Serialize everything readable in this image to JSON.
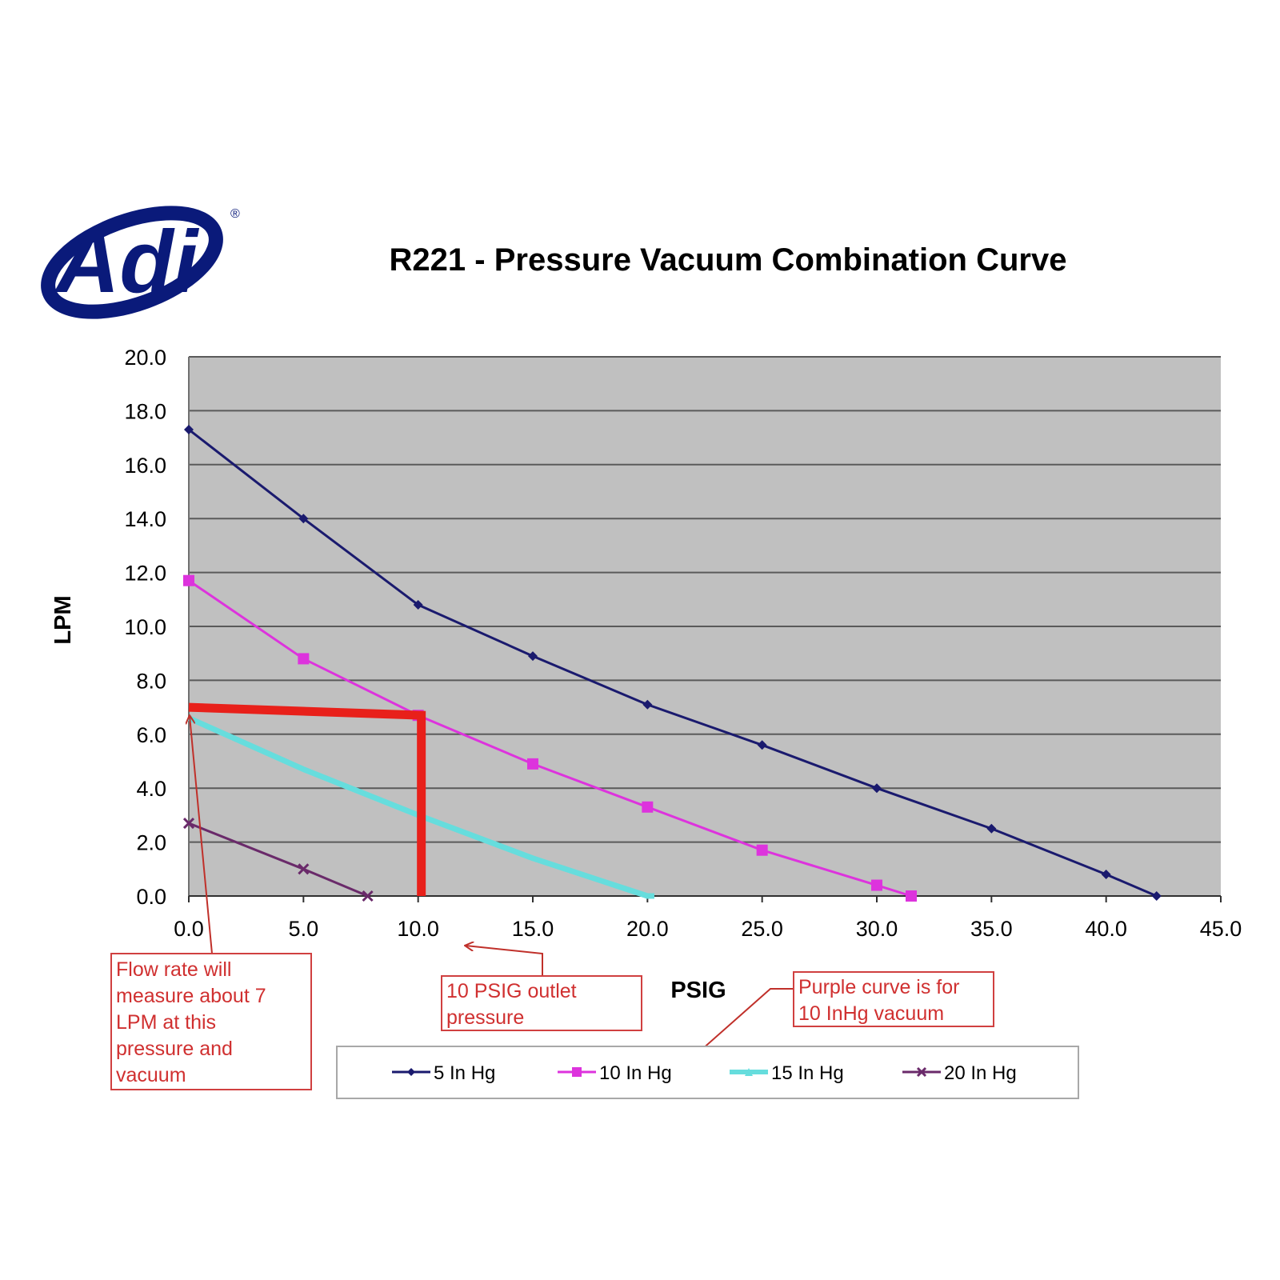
{
  "logo": {
    "text": "Adi",
    "registered": "®",
    "color": "#0a1a7a"
  },
  "chart_data": {
    "type": "line",
    "title": "R221 - Pressure Vacuum Combination Curve",
    "xlabel": "PSIG",
    "ylabel": "LPM",
    "xlim": [
      0,
      45
    ],
    "ylim": [
      0,
      20
    ],
    "xticks": [
      "0.0",
      "5.0",
      "10.0",
      "15.0",
      "20.0",
      "25.0",
      "30.0",
      "35.0",
      "40.0",
      "45.0"
    ],
    "yticks": [
      "0.0",
      "2.0",
      "4.0",
      "6.0",
      "8.0",
      "10.0",
      "12.0",
      "14.0",
      "16.0",
      "18.0",
      "20.0"
    ],
    "grid": true,
    "plot_background": "#c0c0c0",
    "legend_position": "bottom",
    "series": [
      {
        "name": "5 In Hg",
        "color": "#1a1a6e",
        "marker": "diamond",
        "points": [
          [
            0,
            17.3
          ],
          [
            5,
            14.0
          ],
          [
            10,
            10.8
          ],
          [
            15,
            8.9
          ],
          [
            20,
            7.1
          ],
          [
            25,
            5.6
          ],
          [
            30,
            4.0
          ],
          [
            35,
            2.5
          ],
          [
            40,
            0.8
          ],
          [
            42.2,
            0
          ]
        ]
      },
      {
        "name": "10 In Hg",
        "color": "#dd33dd",
        "marker": "square",
        "points": [
          [
            0,
            11.7
          ],
          [
            5,
            8.8
          ],
          [
            10,
            6.7
          ],
          [
            15,
            4.9
          ],
          [
            20,
            3.3
          ],
          [
            25,
            1.7
          ],
          [
            30,
            0.4
          ],
          [
            31.5,
            0
          ]
        ]
      },
      {
        "name": "15 In Hg",
        "color": "#66dddd",
        "marker": "triangle",
        "points": [
          [
            0,
            6.6
          ],
          [
            5,
            4.7
          ],
          [
            10,
            3.0
          ],
          [
            15,
            1.4
          ],
          [
            20,
            0
          ],
          [
            20.3,
            0
          ]
        ]
      },
      {
        "name": "20 In Hg",
        "color": "#6a2a6a",
        "marker": "x",
        "points": [
          [
            0,
            2.7
          ],
          [
            5,
            1.0
          ],
          [
            7.8,
            0
          ]
        ]
      }
    ],
    "highlight": {
      "color": "#e8201a",
      "x": 10,
      "y": 7
    },
    "annotations": [
      {
        "id": "flow-rate",
        "lines": [
          "Flow rate will",
          "measure about 7",
          "LPM at this",
          "pressure and",
          "vacuum"
        ],
        "color": "#d03030"
      },
      {
        "id": "outlet",
        "lines": [
          "10 PSIG outlet",
          "pressure"
        ],
        "color": "#d03030"
      },
      {
        "id": "purple",
        "lines": [
          "Purple curve is for",
          "10 InHg vacuum"
        ],
        "color": "#d03030"
      }
    ]
  }
}
